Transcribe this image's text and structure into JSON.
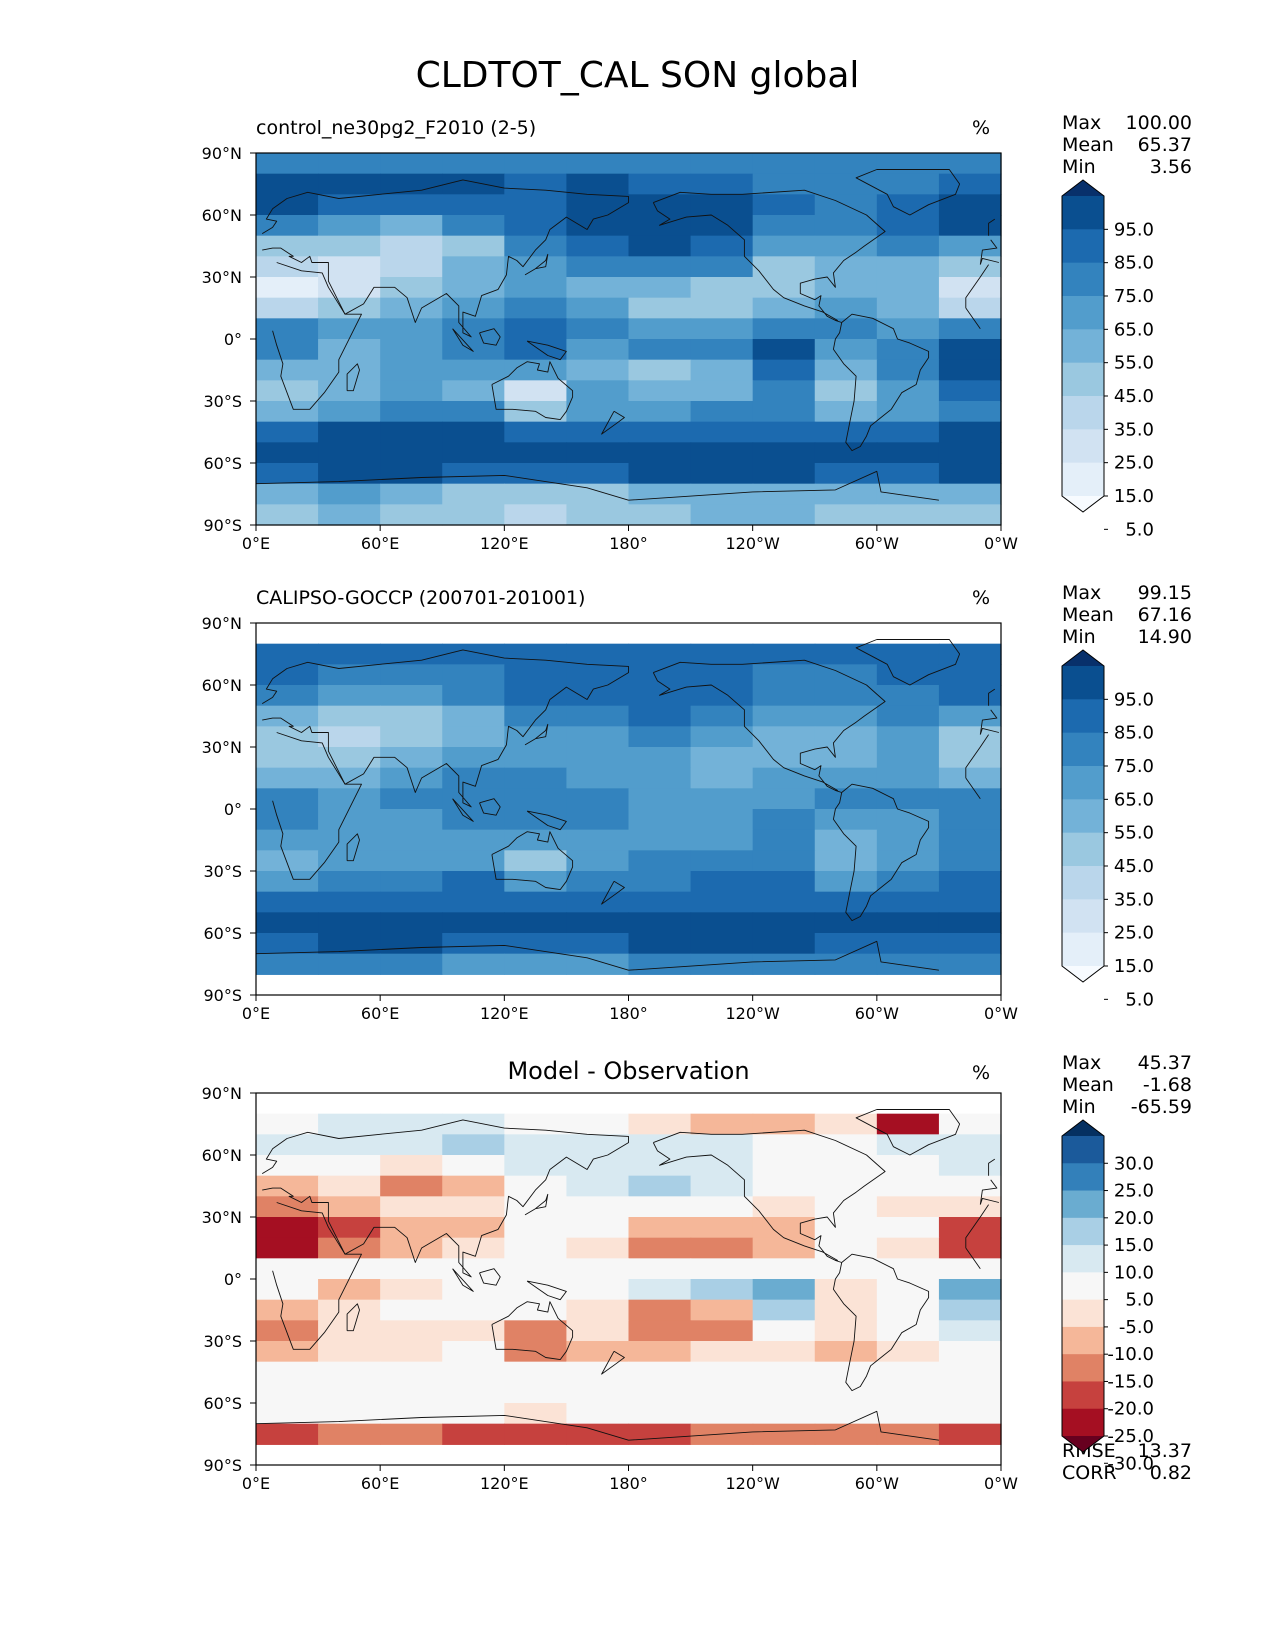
{
  "title": "CLDTOT_CAL SON global",
  "colors": {
    "blues": [
      "#f7fbff",
      "#e4eff9",
      "#d1e2f2",
      "#bad6eb",
      "#9ac8e0",
      "#73b2d8",
      "#529dcc",
      "#3383be",
      "#1c6aaf",
      "#0a4f90",
      "#08306b"
    ],
    "rdbu": [
      "#67001f",
      "#a50f22",
      "#c6413e",
      "#e08265",
      "#f5b799",
      "#fbe3d6",
      "#f7f7f7",
      "#d8e9f1",
      "#a9cfe5",
      "#6aacd0",
      "#3380ba",
      "#1b5a9b",
      "#053061"
    ]
  },
  "chart_data": [
    {
      "type": "heatmap",
      "projection": "equirectangular global map with coastlines",
      "title": "control_ne30pg2_F2010 (2-5)",
      "units": "%",
      "stats": [
        {
          "label": "Max",
          "value": "100.00"
        },
        {
          "label": "Mean",
          "value": "65.37"
        },
        {
          "label": "Min",
          "value": "3.56"
        }
      ],
      "xticks": [
        "0°E",
        "60°E",
        "120°E",
        "180°",
        "120°W",
        "60°W",
        "0°W"
      ],
      "yticks": [
        "90°N",
        "60°N",
        "30°N",
        "0°",
        "30°S",
        "60°S",
        "90°S"
      ],
      "colorbar": {
        "levels": [
          "95.0",
          "85.0",
          "75.0",
          "65.0",
          "55.0",
          "45.0",
          "35.0",
          "25.0",
          "15.0",
          "5.0"
        ],
        "palette": "blues",
        "extend": "both"
      },
      "field": {
        "lat": [
          85,
          75,
          65,
          55,
          45,
          35,
          25,
          15,
          5,
          -5,
          -15,
          -25,
          -35,
          -45,
          -55,
          -65,
          -75,
          -85
        ],
        "lon": [
          15,
          45,
          75,
          105,
          135,
          165,
          195,
          225,
          255,
          285,
          315,
          345
        ],
        "values": [
          [
            70,
            70,
            70,
            75,
            70,
            70,
            70,
            70,
            70,
            70,
            70,
            70
          ],
          [
            92,
            90,
            88,
            90,
            85,
            88,
            85,
            85,
            75,
            70,
            75,
            85
          ],
          [
            88,
            85,
            80,
            85,
            85,
            95,
            95,
            90,
            80,
            70,
            85,
            88
          ],
          [
            75,
            65,
            55,
            70,
            85,
            95,
            95,
            90,
            75,
            70,
            80,
            88
          ],
          [
            45,
            40,
            30,
            45,
            70,
            85,
            90,
            85,
            60,
            65,
            70,
            65
          ],
          [
            30,
            25,
            35,
            50,
            65,
            70,
            75,
            70,
            45,
            55,
            55,
            40
          ],
          [
            15,
            20,
            45,
            50,
            65,
            55,
            50,
            45,
            40,
            55,
            55,
            25
          ],
          [
            30,
            40,
            55,
            60,
            75,
            60,
            45,
            40,
            50,
            60,
            55,
            35
          ],
          [
            75,
            60,
            65,
            75,
            80,
            70,
            65,
            60,
            70,
            70,
            65,
            70
          ],
          [
            70,
            50,
            60,
            75,
            80,
            65,
            70,
            75,
            90,
            60,
            70,
            92
          ],
          [
            50,
            55,
            65,
            65,
            65,
            55,
            45,
            55,
            85,
            55,
            70,
            90
          ],
          [
            40,
            55,
            60,
            55,
            25,
            60,
            50,
            50,
            70,
            45,
            65,
            80
          ],
          [
            55,
            65,
            70,
            75,
            45,
            60,
            65,
            70,
            70,
            50,
            65,
            75
          ],
          [
            85,
            90,
            90,
            88,
            80,
            78,
            82,
            85,
            85,
            80,
            85,
            88
          ],
          [
            92,
            95,
            95,
            95,
            92,
            92,
            94,
            95,
            95,
            95,
            95,
            95
          ],
          [
            85,
            88,
            90,
            85,
            80,
            85,
            88,
            88,
            88,
            85,
            85,
            88
          ],
          [
            55,
            60,
            55,
            45,
            40,
            45,
            50,
            55,
            55,
            50,
            55,
            55
          ],
          [
            45,
            50,
            45,
            40,
            35,
            40,
            45,
            50,
            50,
            45,
            45,
            45
          ]
        ]
      }
    },
    {
      "type": "heatmap",
      "projection": "equirectangular global map with coastlines",
      "title": "CALIPSO-GOCCP (200701-201001)",
      "units": "%",
      "stats": [
        {
          "label": "Max",
          "value": "99.15"
        },
        {
          "label": "Mean",
          "value": "67.16"
        },
        {
          "label": "Min",
          "value": "14.90"
        }
      ],
      "xticks": [
        "0°E",
        "60°E",
        "120°E",
        "180°",
        "120°W",
        "60°W",
        "0°W"
      ],
      "yticks": [
        "90°N",
        "60°N",
        "30°N",
        "0°",
        "30°S",
        "60°S",
        "90°S"
      ],
      "colorbar": {
        "levels": [
          "95.0",
          "85.0",
          "75.0",
          "65.0",
          "55.0",
          "45.0",
          "35.0",
          "25.0",
          "15.0",
          "5.0"
        ],
        "palette": "blues",
        "extend": "both"
      },
      "field": {
        "lat": [
          85,
          75,
          65,
          55,
          45,
          35,
          25,
          15,
          5,
          -5,
          -15,
          -25,
          -35,
          -45,
          -55,
          -65,
          -75,
          -85
        ],
        "lon": [
          15,
          45,
          75,
          105,
          135,
          165,
          195,
          225,
          255,
          285,
          315,
          345
        ],
        "values": [
          [
            null,
            null,
            null,
            null,
            null,
            null,
            null,
            null,
            null,
            null,
            null,
            null
          ],
          [
            85,
            82,
            80,
            82,
            80,
            85,
            85,
            85,
            80,
            78,
            80,
            82
          ],
          [
            80,
            75,
            70,
            75,
            78,
            85,
            85,
            82,
            75,
            72,
            78,
            80
          ],
          [
            70,
            65,
            60,
            68,
            78,
            85,
            85,
            80,
            72,
            70,
            75,
            78
          ],
          [
            55,
            45,
            45,
            55,
            68,
            75,
            78,
            75,
            60,
            62,
            68,
            62
          ],
          [
            45,
            35,
            40,
            55,
            62,
            65,
            70,
            65,
            50,
            55,
            60,
            45
          ],
          [
            40,
            40,
            55,
            60,
            62,
            58,
            60,
            55,
            50,
            55,
            60,
            45
          ],
          [
            55,
            55,
            65,
            68,
            72,
            65,
            60,
            55,
            60,
            62,
            62,
            55
          ],
          [
            72,
            62,
            68,
            72,
            75,
            68,
            62,
            60,
            65,
            70,
            68,
            70
          ],
          [
            70,
            60,
            65,
            72,
            75,
            68,
            60,
            62,
            70,
            60,
            65,
            75
          ],
          [
            60,
            60,
            65,
            65,
            62,
            62,
            62,
            65,
            72,
            55,
            65,
            75
          ],
          [
            55,
            62,
            65,
            60,
            40,
            65,
            68,
            68,
            72,
            50,
            65,
            72
          ],
          [
            65,
            72,
            75,
            78,
            60,
            70,
            75,
            78,
            78,
            60,
            72,
            78
          ],
          [
            82,
            85,
            85,
            85,
            82,
            82,
            85,
            85,
            85,
            82,
            85,
            85
          ],
          [
            88,
            90,
            90,
            90,
            88,
            88,
            90,
            90,
            90,
            90,
            90,
            90
          ],
          [
            85,
            88,
            88,
            85,
            85,
            85,
            88,
            88,
            88,
            85,
            85,
            85
          ],
          [
            72,
            75,
            70,
            65,
            60,
            65,
            70,
            72,
            72,
            68,
            70,
            72
          ],
          [
            null,
            null,
            null,
            null,
            null,
            null,
            null,
            null,
            null,
            null,
            null,
            null
          ]
        ]
      }
    },
    {
      "type": "heatmap",
      "projection": "equirectangular global map with coastlines",
      "title": "Model - Observation",
      "units": "%",
      "stats": [
        {
          "label": "Max",
          "value": "45.37"
        },
        {
          "label": "Mean",
          "value": "-1.68"
        },
        {
          "label": "Min",
          "value": "-65.59"
        }
      ],
      "extra_stats": [
        {
          "label": "RMSE",
          "value": "13.37"
        },
        {
          "label": "CORR",
          "value": "0.82"
        }
      ],
      "xticks": [
        "0°E",
        "60°E",
        "120°E",
        "180°",
        "120°W",
        "60°W",
        "0°W"
      ],
      "yticks": [
        "90°N",
        "60°N",
        "30°N",
        "0°",
        "30°S",
        "60°S",
        "90°S"
      ],
      "colorbar": {
        "levels": [
          "30.0",
          "25.0",
          "20.0",
          "15.0",
          "10.0",
          "5.0",
          "-5.0",
          "-10.0",
          "-15.0",
          "-20.0",
          "-25.0",
          "-30.0"
        ],
        "palette": "rdbu",
        "extend": "both"
      },
      "field": {
        "lat": [
          85,
          75,
          65,
          55,
          45,
          35,
          25,
          15,
          5,
          -5,
          -15,
          -25,
          -35,
          -45,
          -55,
          -65,
          -75,
          -85
        ],
        "lon": [
          15,
          45,
          75,
          105,
          135,
          165,
          195,
          225,
          255,
          285,
          315,
          345
        ],
        "values": [
          [
            null,
            null,
            null,
            null,
            null,
            null,
            null,
            null,
            null,
            null,
            null,
            null
          ],
          [
            5,
            6,
            6,
            8,
            4,
            2,
            -8,
            -10,
            -12,
            -8,
            -25,
            2
          ],
          [
            8,
            10,
            10,
            12,
            6,
            8,
            10,
            8,
            5,
            0,
            6,
            8
          ],
          [
            5,
            0,
            -5,
            2,
            8,
            10,
            10,
            10,
            3,
            0,
            5,
            10
          ],
          [
            -10,
            -5,
            -15,
            -10,
            2,
            10,
            12,
            10,
            0,
            3,
            2,
            3
          ],
          [
            -15,
            -10,
            -5,
            -5,
            3,
            5,
            5,
            5,
            -5,
            0,
            -5,
            -5
          ],
          [
            -25,
            -20,
            -10,
            -10,
            3,
            -3,
            -10,
            -10,
            -10,
            0,
            0,
            -20
          ],
          [
            -25,
            -15,
            -10,
            -8,
            3,
            -5,
            -15,
            -15,
            -10,
            0,
            -5,
            -20
          ],
          [
            3,
            -2,
            -3,
            3,
            5,
            2,
            3,
            0,
            5,
            0,
            -3,
            0
          ],
          [
            0,
            -10,
            -5,
            3,
            5,
            -3,
            10,
            15,
            20,
            -5,
            5,
            20
          ],
          [
            -10,
            -5,
            0,
            0,
            3,
            -5,
            -15,
            -10,
            12,
            -5,
            5,
            15
          ],
          [
            -15,
            -8,
            -5,
            -5,
            -15,
            -5,
            -18,
            -18,
            -3,
            -5,
            0,
            8
          ],
          [
            -10,
            -8,
            -5,
            -3,
            -15,
            -10,
            -10,
            -8,
            -8,
            -10,
            -5,
            -3
          ],
          [
            3,
            5,
            5,
            3,
            -2,
            -3,
            -3,
            0,
            0,
            -2,
            0,
            3
          ],
          [
            5,
            5,
            5,
            5,
            4,
            4,
            4,
            5,
            5,
            5,
            5,
            5
          ],
          [
            0,
            0,
            0,
            0,
            -5,
            0,
            0,
            0,
            0,
            0,
            0,
            0
          ],
          [
            -20,
            -15,
            -15,
            -20,
            -20,
            -20,
            -20,
            -18,
            -18,
            -18,
            -15,
            -20
          ],
          [
            null,
            null,
            null,
            null,
            null,
            null,
            null,
            null,
            null,
            null,
            null,
            null
          ]
        ]
      }
    }
  ]
}
